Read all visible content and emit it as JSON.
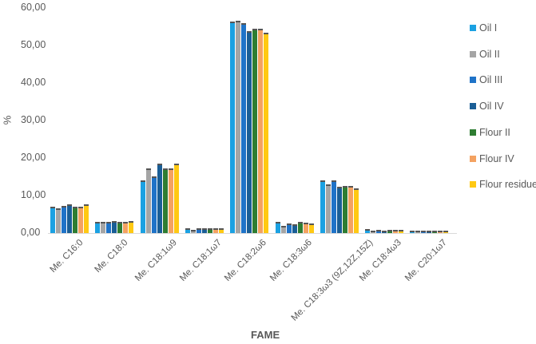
{
  "chart_data": {
    "type": "bar",
    "title": "",
    "xlabel": "FAME",
    "ylabel": "%",
    "ylim": [
      0,
      60
    ],
    "yticks": [
      "0,00",
      "10,00",
      "20,00",
      "30,00",
      "40,00",
      "50,00",
      "60,00"
    ],
    "grid": false,
    "legend_position": "right",
    "categories": [
      "Me. C16:0",
      "Me. C18:0",
      "Me. C18:1ω9",
      "Me. C18:1ω7",
      "Me. C18:2ω6",
      "Me. C18:3ω6",
      "Me. C18:3ω3 (9Z,12Z,15Z)",
      "Me. C18:4ω3",
      "Me. C20:1ω7"
    ],
    "series": [
      {
        "name": "Oil I",
        "color": "#1ba1e2",
        "values": [
          6.8,
          2.7,
          13.9,
          1.0,
          56.2,
          2.7,
          13.9,
          0.8,
          0.4
        ]
      },
      {
        "name": "Oil II",
        "color": "#a5a5a5",
        "values": [
          6.4,
          2.7,
          17.0,
          0.7,
          56.4,
          1.6,
          12.8,
          0.5,
          0.4
        ]
      },
      {
        "name": "Oil III",
        "color": "#1f73c8",
        "values": [
          7.0,
          2.8,
          14.8,
          1.0,
          55.7,
          2.3,
          13.9,
          0.7,
          0.4
        ]
      },
      {
        "name": "Oil IV",
        "color": "#1a5e96",
        "values": [
          7.4,
          2.9,
          18.4,
          1.0,
          53.6,
          2.2,
          12.1,
          0.5,
          0.4
        ]
      },
      {
        "name": "Flour II",
        "color": "#2e7d32",
        "values": [
          6.8,
          2.8,
          17.0,
          1.0,
          54.3,
          2.7,
          12.4,
          0.7,
          0.4
        ]
      },
      {
        "name": "Flour IV",
        "color": "#f4a261",
        "values": [
          6.9,
          2.8,
          17.0,
          1.0,
          54.3,
          2.5,
          12.4,
          0.7,
          0.4
        ]
      },
      {
        "name": "Flour residue",
        "color": "#ffc913",
        "values": [
          7.4,
          3.0,
          18.4,
          1.0,
          53.1,
          2.4,
          11.6,
          0.6,
          0.4
        ]
      }
    ]
  }
}
